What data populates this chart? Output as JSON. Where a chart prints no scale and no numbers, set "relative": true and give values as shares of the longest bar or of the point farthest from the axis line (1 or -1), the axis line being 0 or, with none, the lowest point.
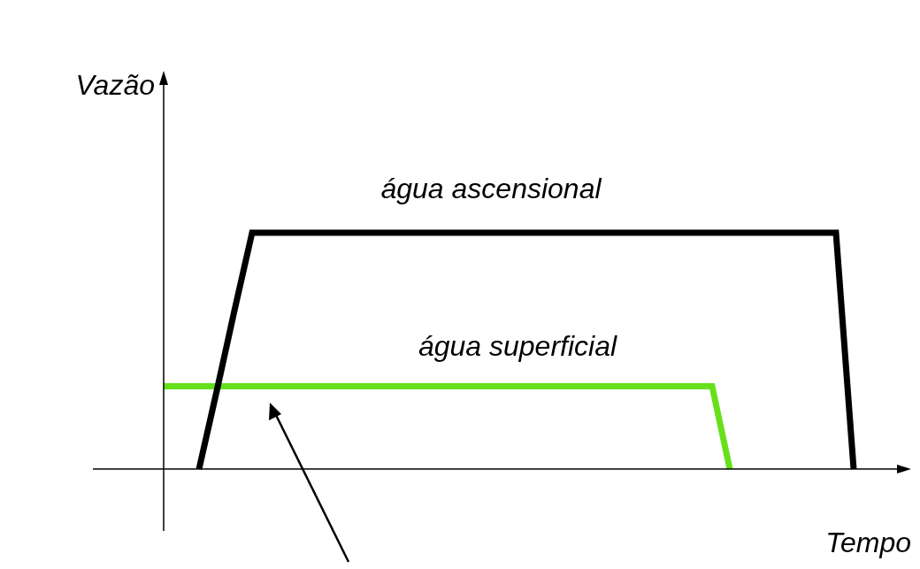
{
  "chart_data": {
    "type": "line",
    "relative": true,
    "xlabel": "Tempo",
    "ylabel": "Vazão",
    "legend": false,
    "marker": "none",
    "categories": [
      null,
      null,
      null,
      null,
      null,
      null,
      null,
      null,
      null,
      null,
      null,
      null,
      null,
      null,
      null,
      null,
      null,
      null,
      null,
      null,
      null,
      null,
      null,
      null,
      null,
      null,
      null,
      null,
      null,
      null,
      null,
      null,
      null,
      null,
      null,
      null,
      null,
      null,
      null,
      null,
      null,
      null,
      null
    ],
    "series": [
      {
        "name": "água ascensional",
        "color": "#000000",
        "values": [
          null,
          null,
          0,
          0.33,
          0.67,
          1,
          1,
          1,
          1,
          1,
          1,
          1,
          1,
          1,
          1,
          1,
          1,
          1,
          1,
          1,
          1,
          1,
          1,
          1,
          1,
          1,
          1,
          1,
          1,
          1,
          1,
          1,
          1,
          1,
          1,
          1,
          1,
          1,
          1,
          0,
          null,
          null,
          null
        ]
      },
      {
        "name": "água superficial",
        "color": "#66e01a",
        "values": [
          0.35,
          0.35,
          0.35,
          0.35,
          0.35,
          0.35,
          0.35,
          0.35,
          0.35,
          0.35,
          0.35,
          0.35,
          0.35,
          0.35,
          0.35,
          0.35,
          0.35,
          0.35,
          0.35,
          0.35,
          0.35,
          0.35,
          0.35,
          0.35,
          0.35,
          0.35,
          0.35,
          0.35,
          0.35,
          0.35,
          0.35,
          0.35,
          0,
          null,
          null,
          null,
          null,
          null,
          null,
          null,
          null,
          null,
          null
        ]
      }
    ]
  }
}
